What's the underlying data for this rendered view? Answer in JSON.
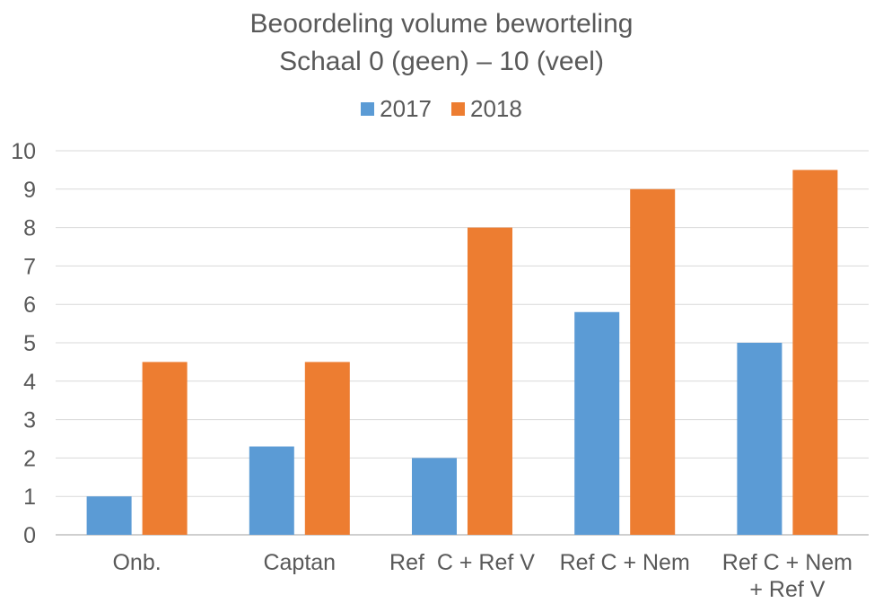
{
  "chart_data": {
    "type": "bar",
    "title": "Beoordeling volume beworteling",
    "subtitle": "Schaal 0 (geen) – 10 (veel)",
    "categories": [
      "Onb.",
      "Captan",
      "Ref  C + Ref V",
      "Ref C + Nem",
      "Ref C + Nem\n+ Ref V"
    ],
    "series": [
      {
        "name": "2017",
        "color": "#5B9BD5",
        "values": [
          1,
          2.3,
          2,
          5.8,
          5
        ]
      },
      {
        "name": "2018",
        "color": "#ED7D31",
        "values": [
          4.5,
          4.5,
          8,
          9,
          9.5
        ]
      }
    ],
    "ylim": [
      0,
      10
    ],
    "yticks": [
      "0",
      "1",
      "2",
      "3",
      "4",
      "5",
      "6",
      "7",
      "8",
      "9",
      "10"
    ],
    "grid": true,
    "legend_position": "top"
  }
}
